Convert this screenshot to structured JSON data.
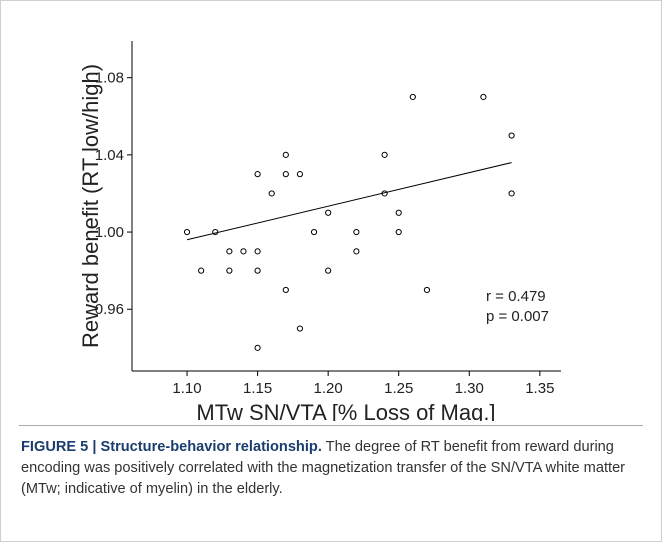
{
  "chart_data": {
    "type": "scatter",
    "xlabel": "MTw SN/VTA [% Loss of Mag.]",
    "ylabel": "Reward benefit (RT low/high)",
    "x": [
      1.1,
      1.11,
      1.12,
      1.13,
      1.13,
      1.14,
      1.15,
      1.15,
      1.15,
      1.15,
      1.16,
      1.17,
      1.17,
      1.17,
      1.18,
      1.18,
      1.19,
      1.2,
      1.2,
      1.22,
      1.22,
      1.24,
      1.24,
      1.25,
      1.25,
      1.26,
      1.27,
      1.31,
      1.33,
      1.33
    ],
    "values": [
      1.0,
      0.98,
      1.0,
      0.99,
      0.98,
      0.99,
      1.03,
      0.99,
      0.98,
      0.94,
      1.02,
      1.04,
      1.03,
      0.97,
      1.03,
      0.95,
      1.0,
      1.01,
      0.98,
      1.0,
      0.99,
      1.04,
      1.02,
      1.01,
      1.0,
      1.07,
      0.97,
      1.07,
      1.05,
      1.02
    ],
    "color": "#000000",
    "fit_line": {
      "x": [
        1.1,
        1.33
      ],
      "y": [
        0.996,
        1.036
      ]
    },
    "annotations": [
      "r = 0.479",
      "p = 0.007"
    ],
    "xlim": [
      1.061,
      1.365
    ],
    "ylim": [
      0.928,
      1.099
    ],
    "xticks": [
      {
        "value": 1.1,
        "label": "1.10"
      },
      {
        "value": 1.15,
        "label": "1.15"
      },
      {
        "value": 1.2,
        "label": "1.20"
      },
      {
        "value": 1.25,
        "label": "1.25"
      },
      {
        "value": 1.3,
        "label": "1.30"
      },
      {
        "value": 1.35,
        "label": "1.35"
      }
    ],
    "yticks": [
      {
        "value": 0.96,
        "label": "0.96"
      },
      {
        "value": 1.0,
        "label": "1.00"
      },
      {
        "value": 1.04,
        "label": "1.04"
      },
      {
        "value": 1.08,
        "label": "1.08"
      }
    ]
  },
  "caption": {
    "label": "FIGURE 5 | Structure-behavior relationship.",
    "text": "The degree of RT benefit from reward during encoding was positively correlated with the magnetization transfer of the SN/VTA white matter (MTw; indicative of myelin) in the elderly."
  }
}
